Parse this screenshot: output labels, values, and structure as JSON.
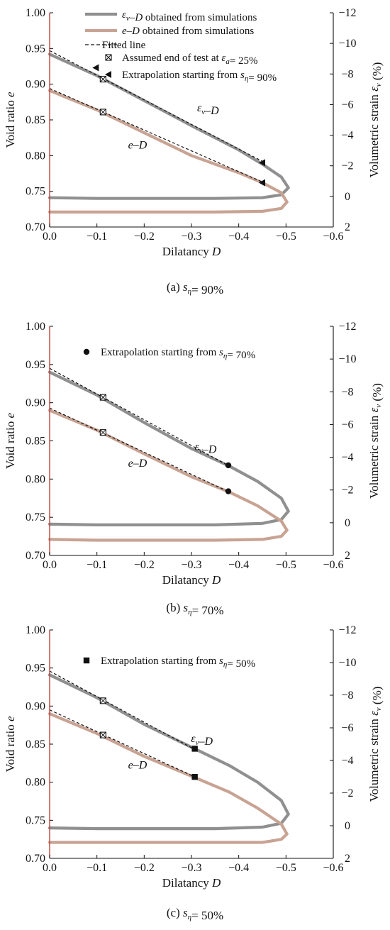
{
  "colors": {
    "ev_curve": "#909090",
    "e_curve": "#c8a393",
    "left_axis": "#c0413a",
    "fitted": "#111111",
    "marker": "#111111"
  },
  "legend": {
    "ev": "εv–D obtained from simulations",
    "e": "e–D obtained from simulations",
    "fitted": "Fitted line",
    "end": "Assumed end of test at εa= 25%"
  },
  "chart_data": [
    {
      "type": "line",
      "panel": "a",
      "caption": "(a) sη= 90%",
      "extrapolation_label": "Extrapolation starting from sη= 90%",
      "extrapolation_marker": "triangle",
      "xlabel": "Dilatancy D",
      "ylabel": "Void ratio e",
      "y2label": "Volumetric strain εv (%)",
      "xlim": [
        0.0,
        -0.6
      ],
      "ylim": [
        0.7,
        1.0
      ],
      "y2lim": [
        2,
        -12
      ],
      "xticks": [
        "0.0",
        "−0.1",
        "−0.2",
        "−0.3",
        "−0.4",
        "−0.5",
        "−0.6"
      ],
      "yticks": [
        "0.70",
        "0.75",
        "0.80",
        "0.85",
        "0.90",
        "0.95",
        "1.00"
      ],
      "y2ticks": [
        "2",
        "0",
        "−2",
        "−4",
        "−6",
        "−8",
        "−10",
        "−12"
      ],
      "curve_labels": {
        "ev": "εv–D",
        "e": "e–D"
      },
      "series": [
        {
          "name": "εv–D obtained from simulations",
          "x": [
            0.0,
            -0.1,
            -0.2,
            -0.3,
            -0.4,
            -0.45,
            -0.49,
            -0.505,
            -0.49,
            -0.45,
            -0.35,
            -0.2,
            -0.1,
            0.0
          ],
          "y": [
            0.942,
            0.912,
            0.877,
            0.842,
            0.808,
            0.788,
            0.77,
            0.755,
            0.745,
            0.741,
            0.74,
            0.74,
            0.74,
            0.741
          ]
        },
        {
          "name": "e–D obtained from simulations",
          "x": [
            0.0,
            -0.1,
            -0.2,
            -0.3,
            -0.4,
            -0.45,
            -0.49,
            -0.502,
            -0.49,
            -0.45,
            -0.35,
            -0.2,
            -0.1,
            0.0
          ],
          "y": [
            0.891,
            0.864,
            0.832,
            0.8,
            0.776,
            0.762,
            0.748,
            0.735,
            0.726,
            0.722,
            0.721,
            0.721,
            0.721,
            0.721
          ]
        }
      ],
      "fitted_lines": [
        {
          "x": [
            0.0,
            -0.45
          ],
          "y": [
            0.947,
            0.792
          ]
        },
        {
          "x": [
            0.0,
            -0.45
          ],
          "y": [
            0.894,
            0.763
          ]
        }
      ],
      "end_points": [
        {
          "x": -0.113,
          "y": 0.907
        },
        {
          "x": -0.113,
          "y": 0.861
        }
      ],
      "extrapolation_points": [
        {
          "x": -0.45,
          "y": 0.79
        },
        {
          "x": -0.45,
          "y": 0.762
        },
        {
          "x": -0.098,
          "y": 0.923
        }
      ]
    },
    {
      "type": "line",
      "panel": "b",
      "caption": "(b) sη= 70%",
      "extrapolation_label": "Extrapolation starting from sη= 70%",
      "extrapolation_marker": "circle",
      "xlabel": "Dilatancy D",
      "ylabel": "Void ratio e",
      "y2label": "Volumetric strain εv (%)",
      "xlim": [
        0.0,
        -0.6
      ],
      "ylim": [
        0.7,
        1.0
      ],
      "y2lim": [
        2,
        -12
      ],
      "xticks": [
        "0.0",
        "−0.1",
        "−0.2",
        "−0.3",
        "−0.4",
        "−0.5",
        "−0.6"
      ],
      "yticks": [
        "0.70",
        "0.75",
        "0.80",
        "0.85",
        "0.90",
        "0.95",
        "1.00"
      ],
      "y2ticks": [
        "2",
        "0",
        "−2",
        "−4",
        "−6",
        "−8",
        "−10",
        "−12"
      ],
      "curve_labels": {
        "ev": "εv–D",
        "e": "e–D"
      },
      "series": [
        {
          "name": "εv–D obtained from simulations",
          "x": [
            0.0,
            -0.1,
            -0.2,
            -0.3,
            -0.38,
            -0.44,
            -0.49,
            -0.505,
            -0.49,
            -0.45,
            -0.35,
            -0.2,
            -0.1,
            0.0
          ],
          "y": [
            0.94,
            0.91,
            0.874,
            0.84,
            0.817,
            0.797,
            0.775,
            0.758,
            0.747,
            0.742,
            0.74,
            0.74,
            0.74,
            0.741
          ]
        },
        {
          "name": "e–D obtained from simulations",
          "x": [
            0.0,
            -0.1,
            -0.2,
            -0.3,
            -0.38,
            -0.44,
            -0.49,
            -0.502,
            -0.49,
            -0.45,
            -0.35,
            -0.2,
            -0.1,
            0.0
          ],
          "y": [
            0.89,
            0.864,
            0.833,
            0.803,
            0.783,
            0.765,
            0.745,
            0.733,
            0.725,
            0.721,
            0.72,
            0.72,
            0.72,
            0.721
          ]
        }
      ],
      "fitted_lines": [
        {
          "x": [
            0.0,
            -0.38
          ],
          "y": [
            0.945,
            0.817
          ]
        },
        {
          "x": [
            0.0,
            -0.38
          ],
          "y": [
            0.893,
            0.783
          ]
        }
      ],
      "end_points": [
        {
          "x": -0.113,
          "y": 0.907
        },
        {
          "x": -0.113,
          "y": 0.861
        }
      ],
      "extrapolation_points": [
        {
          "x": -0.378,
          "y": 0.818
        },
        {
          "x": -0.378,
          "y": 0.784
        }
      ]
    },
    {
      "type": "line",
      "panel": "c",
      "caption": "(c) sη= 50%",
      "extrapolation_label": "Extrapolation starting from sη= 50%",
      "extrapolation_marker": "square",
      "xlabel": "Dilatancy D",
      "ylabel": "Void ratio e",
      "y2label": "Volumetric strain εv (%)",
      "xlim": [
        0.0,
        -0.6
      ],
      "ylim": [
        0.7,
        1.0
      ],
      "y2lim": [
        2,
        -12
      ],
      "xticks": [
        "0.0",
        "−0.1",
        "−0.2",
        "−0.3",
        "−0.4",
        "−0.5",
        "−0.6"
      ],
      "yticks": [
        "0.70",
        "0.75",
        "0.80",
        "0.85",
        "0.90",
        "0.95",
        "1.00"
      ],
      "y2ticks": [
        "2",
        "0",
        "−2",
        "−4",
        "−6",
        "−8",
        "−10",
        "−12"
      ],
      "curve_labels": {
        "ev": "εv–D",
        "e": "e–D"
      },
      "series": [
        {
          "name": "εv–D obtained from simulations",
          "x": [
            0.0,
            -0.1,
            -0.2,
            -0.3,
            -0.38,
            -0.44,
            -0.49,
            -0.505,
            -0.49,
            -0.45,
            -0.35,
            -0.2,
            -0.1,
            0.0
          ],
          "y": [
            0.941,
            0.911,
            0.876,
            0.846,
            0.822,
            0.8,
            0.776,
            0.758,
            0.746,
            0.741,
            0.739,
            0.739,
            0.739,
            0.74
          ]
        },
        {
          "name": "e–D obtained from simulations",
          "x": [
            0.0,
            -0.1,
            -0.2,
            -0.3,
            -0.38,
            -0.44,
            -0.49,
            -0.502,
            -0.49,
            -0.45,
            -0.35,
            -0.2,
            -0.1,
            0.0
          ],
          "y": [
            0.89,
            0.864,
            0.834,
            0.808,
            0.787,
            0.766,
            0.745,
            0.732,
            0.725,
            0.721,
            0.721,
            0.721,
            0.721,
            0.721
          ]
        }
      ],
      "fitted_lines": [
        {
          "x": [
            0.0,
            -0.307
          ],
          "y": [
            0.946,
            0.843
          ]
        },
        {
          "x": [
            0.0,
            -0.307
          ],
          "y": [
            0.895,
            0.807
          ]
        }
      ],
      "end_points": [
        {
          "x": -0.113,
          "y": 0.907
        },
        {
          "x": -0.113,
          "y": 0.862
        }
      ],
      "extrapolation_points": [
        {
          "x": -0.307,
          "y": 0.844
        },
        {
          "x": -0.307,
          "y": 0.807
        }
      ]
    }
  ]
}
